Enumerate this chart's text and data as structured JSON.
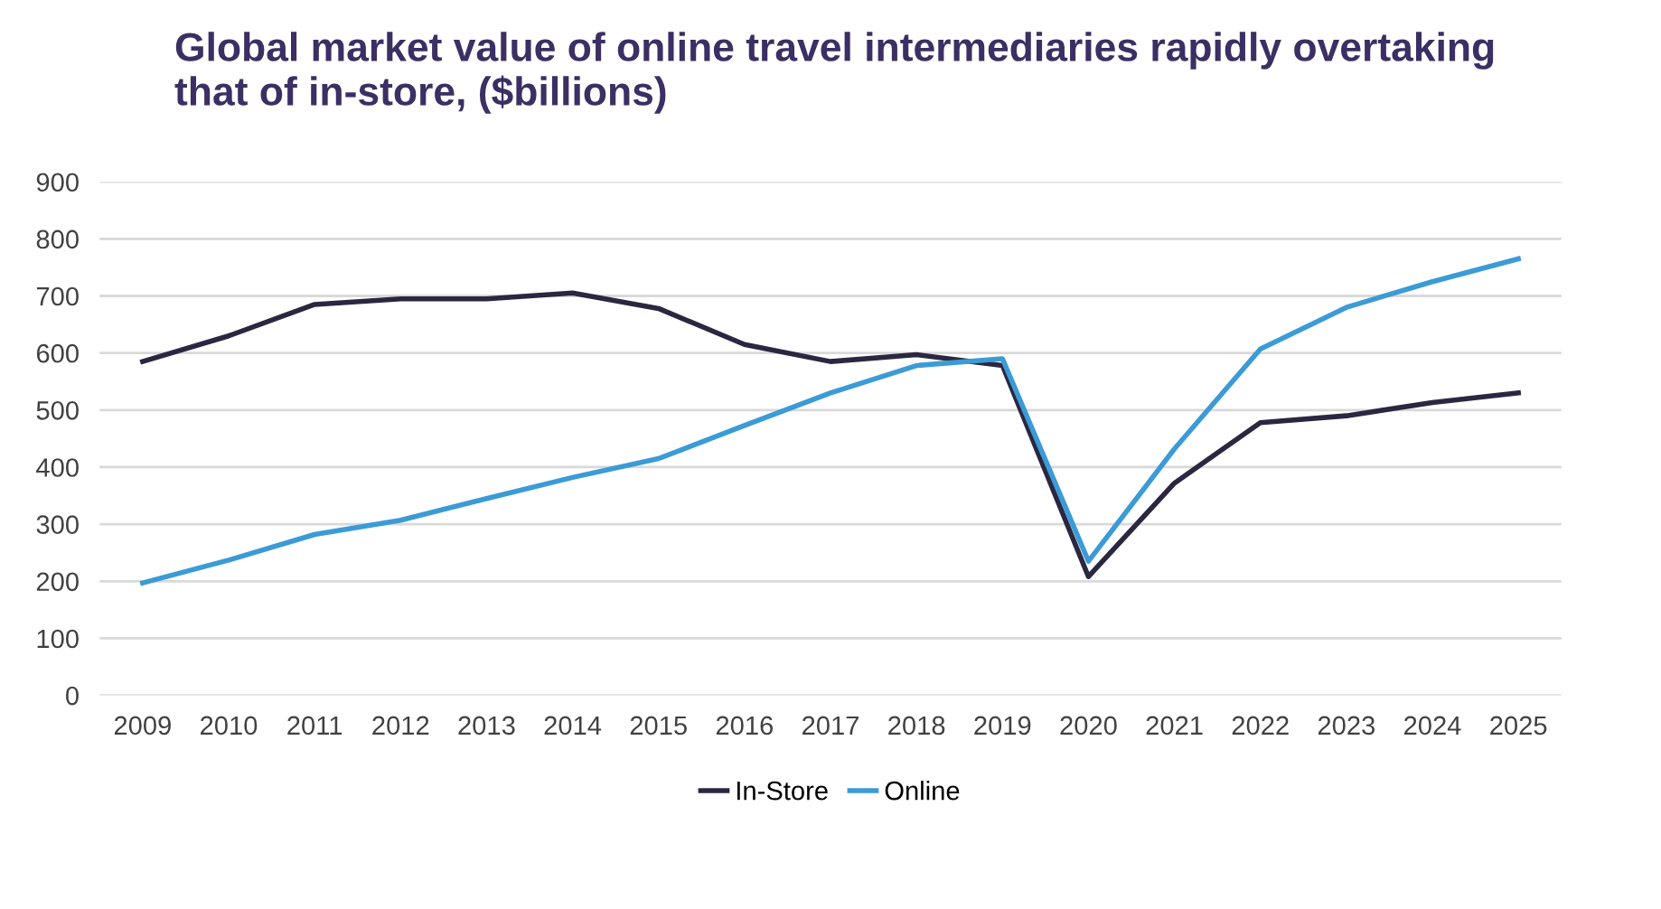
{
  "chart_data": {
    "type": "line",
    "title": "Global market value of online travel intermediaries rapidly overtaking\nthat of in-store, ($billions)",
    "categories": [
      "2009",
      "2010",
      "2011",
      "2012",
      "2013",
      "2014",
      "2015",
      "2016",
      "2017",
      "2018",
      "2019",
      "2020",
      "2021",
      "2022",
      "2023",
      "2024",
      "2025"
    ],
    "series": [
      {
        "name": "In-Store",
        "color": "#2b2740",
        "values": [
          585,
          630,
          685,
          695,
          695,
          705,
          678,
          615,
          585,
          597,
          578,
          208,
          372,
          478,
          490,
          513,
          530
        ]
      },
      {
        "name": "Online",
        "color": "#3b9bd6",
        "values": [
          197,
          237,
          282,
          307,
          345,
          382,
          415,
          473,
          530,
          578,
          590,
          235,
          432,
          607,
          680,
          725,
          765
        ]
      }
    ],
    "ylim": [
      0,
      900
    ],
    "yticks": [
      0,
      100,
      200,
      300,
      400,
      500,
      600,
      700,
      800,
      900
    ],
    "grid": "y",
    "legend": "bottom",
    "marker": "none",
    "line_style": "solid"
  }
}
